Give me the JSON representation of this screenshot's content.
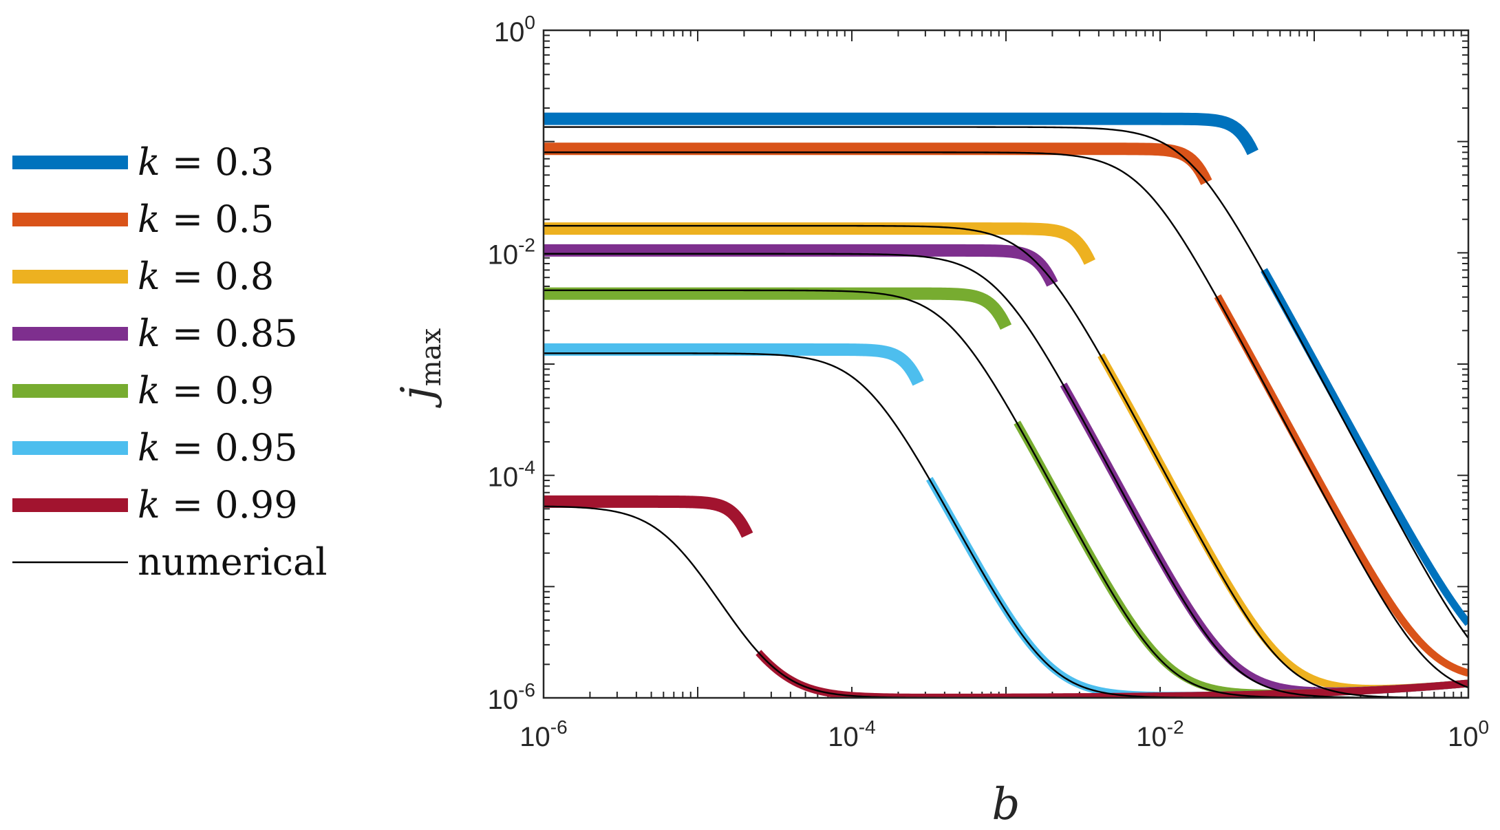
{
  "chart_data": {
    "type": "line",
    "xscale": "log",
    "yscale": "log",
    "xlim": [
      1e-06,
      1
    ],
    "ylim": [
      1e-06,
      1
    ],
    "xlabel": "b",
    "ylabel": "j",
    "ylabel_sub": "max",
    "x_ticks": [
      {
        "base": "10",
        "exp": "-6"
      },
      {
        "base": "10",
        "exp": "-4"
      },
      {
        "base": "10",
        "exp": "-2"
      },
      {
        "base": "10",
        "exp": "0"
      }
    ],
    "y_ticks": [
      {
        "base": "10",
        "exp": "-6"
      },
      {
        "base": "10",
        "exp": "-4"
      },
      {
        "base": "10",
        "exp": "-2"
      },
      {
        "base": "10",
        "exp": "0"
      }
    ],
    "legend_position": "left-outside",
    "legend_var": "k",
    "legend_eq": " = ",
    "series": [
      {
        "name": "0.3",
        "color": "#0072BD",
        "plateau": 0.16,
        "break_b": 0.04,
        "num_plateau": 0.135,
        "num_knee": 0.015
      },
      {
        "name": "0.5",
        "color": "#D95319",
        "plateau": 0.086,
        "break_b": 0.02,
        "num_plateau": 0.08,
        "num_knee": 0.0075
      },
      {
        "name": "0.8",
        "color": "#EDB120",
        "plateau": 0.0165,
        "break_b": 0.0035,
        "num_plateau": 0.0175,
        "num_knee": 0.0015
      },
      {
        "name": "0.85",
        "color": "#7E2F8E",
        "plateau": 0.0105,
        "break_b": 0.002,
        "num_plateau": 0.0098,
        "num_knee": 0.00085
      },
      {
        "name": "0.9",
        "color": "#77AC30",
        "plateau": 0.0043,
        "break_b": 0.001,
        "num_plateau": 0.0046,
        "num_knee": 0.00042
      },
      {
        "name": "0.95",
        "color": "#4DBEEE",
        "plateau": 0.00135,
        "break_b": 0.00027,
        "num_plateau": 0.00125,
        "num_knee": 0.00012
      },
      {
        "name": "0.99",
        "color": "#A2142F",
        "plateau": 5.8e-05,
        "break_b": 2.1e-05,
        "num_plateau": 5.2e-05,
        "num_knee": 6.5e-06
      }
    ],
    "numerical_label": "numerical",
    "floor": 1e-06
  }
}
